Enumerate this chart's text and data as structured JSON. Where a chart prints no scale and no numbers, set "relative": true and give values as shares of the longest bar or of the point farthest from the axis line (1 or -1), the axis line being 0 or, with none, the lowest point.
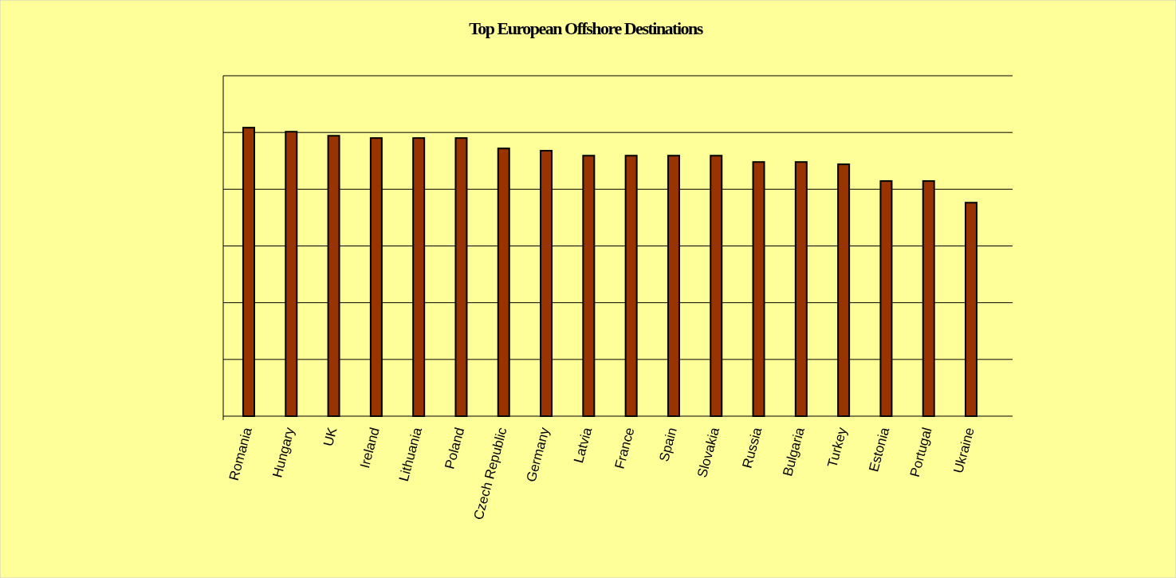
{
  "chart_data": {
    "type": "bar",
    "title": "Top European Offshore Destinations",
    "relative": true,
    "grid": true,
    "categories": [
      "Romania",
      "Hungary",
      "UK",
      "Ireland",
      "Lithuania",
      "Poland",
      "Czech Republic",
      "Germany",
      "Latvia",
      "France",
      "Spain",
      "Slovakia",
      "Russia",
      "Bulgaria",
      "Turkey",
      "Estonia",
      "Portugal",
      "Ukraine"
    ],
    "values": [
      1,
      0.986,
      0.972,
      0.964,
      0.964,
      0.964,
      0.928,
      0.92,
      0.903,
      0.903,
      0.903,
      0.903,
      0.881,
      0.881,
      0.873,
      0.815,
      0.815,
      0.74
    ],
    "color": "#993300"
  }
}
